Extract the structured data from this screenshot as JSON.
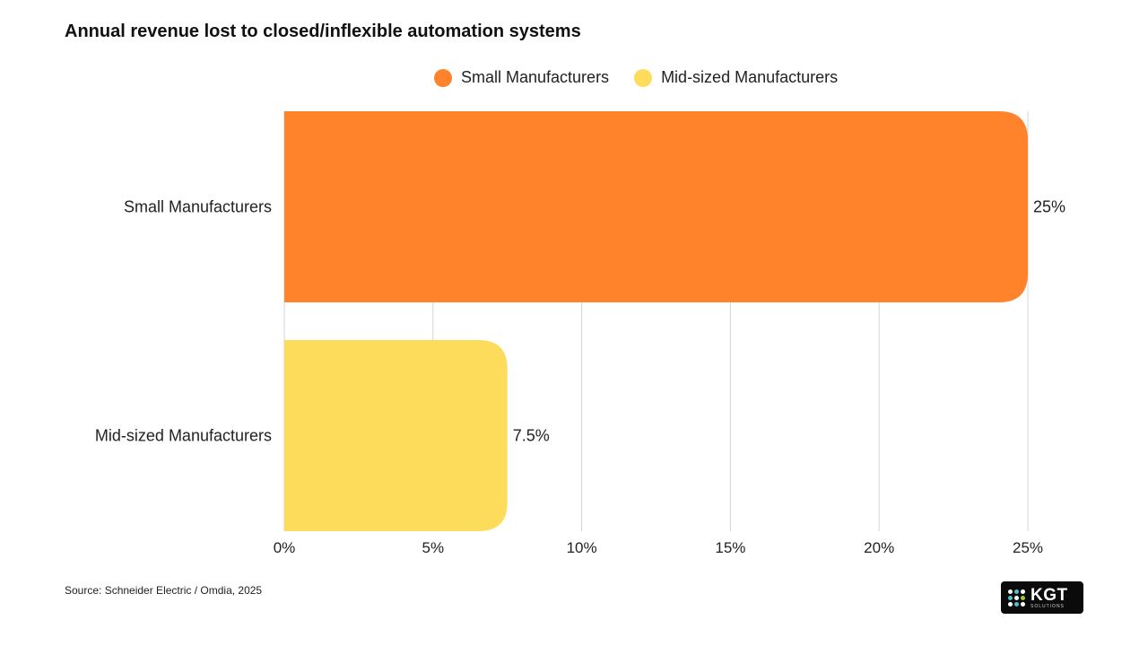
{
  "chart_data": {
    "type": "bar",
    "orientation": "horizontal",
    "title": "Annual revenue lost to closed/inflexible automation systems",
    "categories": [
      "Small Manufacturers",
      "Mid-sized Manufacturers"
    ],
    "values": [
      25,
      7.5
    ],
    "value_labels": [
      "25%",
      "7.5%"
    ],
    "colors": [
      "#ff832b",
      "#fddc5c"
    ],
    "xlim": [
      0,
      25
    ],
    "x_ticks": [
      0,
      5,
      10,
      15,
      20,
      25
    ],
    "x_tick_labels": [
      "0%",
      "5%",
      "10%",
      "15%",
      "20%",
      "25%"
    ],
    "grid": true,
    "legend": {
      "position": "top",
      "entries": [
        {
          "label": "Small Manufacturers",
          "color": "#ff832b"
        },
        {
          "label": "Mid-sized Manufacturers",
          "color": "#fddc5c"
        }
      ]
    },
    "source": "Source: Schneider Electric / Omdia, 2025"
  },
  "logo": {
    "text": "KGT",
    "subtext": "SOLUTIONS",
    "dot_colors": [
      "#ffffff",
      "#4fc3c8",
      "#ffffff",
      "#4fc3c8",
      "#ffffff",
      "#9acd32",
      "#ffffff",
      "#4fc3c8",
      "#ffffff"
    ]
  }
}
